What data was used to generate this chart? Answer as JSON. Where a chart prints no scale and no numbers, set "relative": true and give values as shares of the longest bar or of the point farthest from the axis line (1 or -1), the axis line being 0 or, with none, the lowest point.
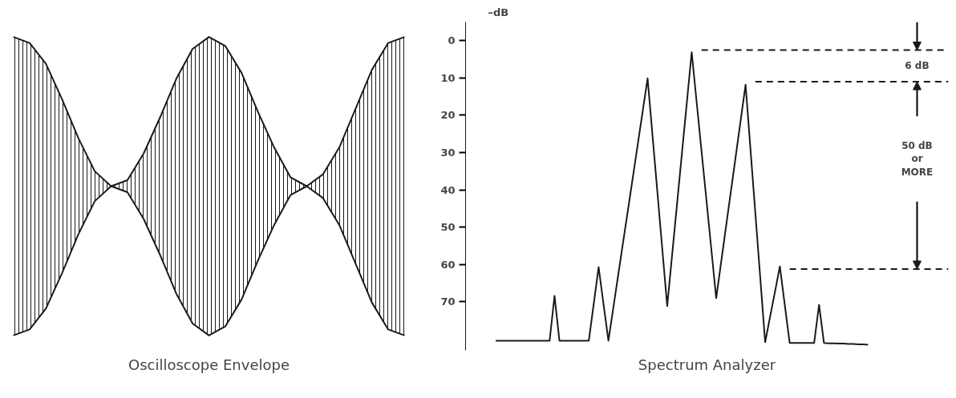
{
  "chart_data": [
    {
      "type": "area",
      "title": "Oscilloscope Envelope",
      "relative": true,
      "tick_labels": false,
      "categories": [
        null,
        null,
        null,
        null,
        null,
        null,
        null,
        null,
        null,
        null,
        null,
        null,
        null,
        null,
        null,
        null,
        null,
        null,
        null,
        null,
        null,
        null,
        null,
        null,
        null
      ],
      "series": [
        {
          "type": "area",
          "color": "#1a1a1a",
          "values": [
            1.0,
            0.98,
            0.91,
            0.79,
            0.66,
            0.55,
            0.5,
            0.52,
            0.61,
            0.73,
            0.86,
            0.96,
            1.0,
            0.97,
            0.88,
            0.75,
            0.63,
            0.53,
            0.5,
            0.54,
            0.63,
            0.76,
            0.89,
            0.98,
            1.0
          ]
        },
        {
          "type": "line",
          "color": "#1a1a1a",
          "values": [
            0.0,
            0.02,
            0.09,
            0.21,
            0.34,
            0.45,
            0.5,
            0.48,
            0.39,
            0.27,
            0.14,
            0.04,
            0.0,
            0.03,
            0.12,
            0.25,
            0.37,
            0.47,
            0.5,
            0.46,
            0.37,
            0.24,
            0.11,
            0.02,
            0.0
          ]
        }
      ]
    },
    {
      "type": "line",
      "title": "Spectrum Analyzer",
      "ylabel": "–dB",
      "tick_labels": "y",
      "ylim": [
        83,
        -5
      ],
      "yticks": [
        0,
        10,
        20,
        30,
        40,
        50,
        60,
        70
      ],
      "marker": "none",
      "line_style": "solid",
      "categories": [
        null,
        null,
        null,
        null,
        null,
        null,
        null,
        null,
        null,
        null,
        null,
        null,
        null,
        null,
        null,
        null,
        null,
        null,
        null,
        null,
        null,
        null,
        null,
        null,
        null,
        null,
        null,
        null,
        null,
        null,
        null,
        null,
        null,
        null,
        null,
        null,
        null,
        null,
        null,
        null,
        null,
        null,
        null,
        null,
        null,
        null,
        null,
        null,
        null,
        null,
        null,
        null,
        null,
        null,
        null,
        null,
        null,
        null,
        null,
        null,
        null,
        null,
        null,
        null,
        null,
        null,
        null,
        null,
        null,
        null,
        null,
        null,
        null,
        null,
        null,
        null,
        null
      ],
      "series": [
        {
          "color": "#1a1a1a",
          "values": [
            80.4,
            80.4,
            80.4,
            80.4,
            80.4,
            80.4,
            80.4,
            80.4,
            80.4,
            80.4,
            80.4,
            80.4,
            68.4,
            80.4,
            80.4,
            80.4,
            80.4,
            80.4,
            80.4,
            80.4,
            70.6,
            60.7,
            70.6,
            80.4,
            71.6,
            62.8,
            54.0,
            45.3,
            36.5,
            27.7,
            18.9,
            10.1,
            25.4,
            40.6,
            55.9,
            71.1,
            57.5,
            43.9,
            30.3,
            16.7,
            3.1,
            16.3,
            29.5,
            42.6,
            55.8,
            69.0,
            59.5,
            49.9,
            40.4,
            30.9,
            21.3,
            11.8,
            29.1,
            46.3,
            63.6,
            80.8,
            74.0,
            67.3,
            60.5,
            70.8,
            81,
            81,
            81,
            81,
            81,
            81,
            70.8,
            81,
            81.1,
            81.1,
            81.2,
            81.2,
            81.3,
            81.3,
            81.4,
            81.4,
            81.5
          ]
        }
      ],
      "ref_lines": [
        {
          "axis": "y",
          "value": 2.5,
          "line_style": "dashed",
          "color": "#1a1a1a"
        },
        {
          "axis": "y",
          "value": 11,
          "line_style": "dashed",
          "color": "#1a1a1a"
        },
        {
          "axis": "y",
          "value": 61.2,
          "line_style": "dashed",
          "color": "#1a1a1a"
        }
      ],
      "annotations": [
        "6 dB",
        "50 dB\nor\nMORE"
      ]
    }
  ]
}
